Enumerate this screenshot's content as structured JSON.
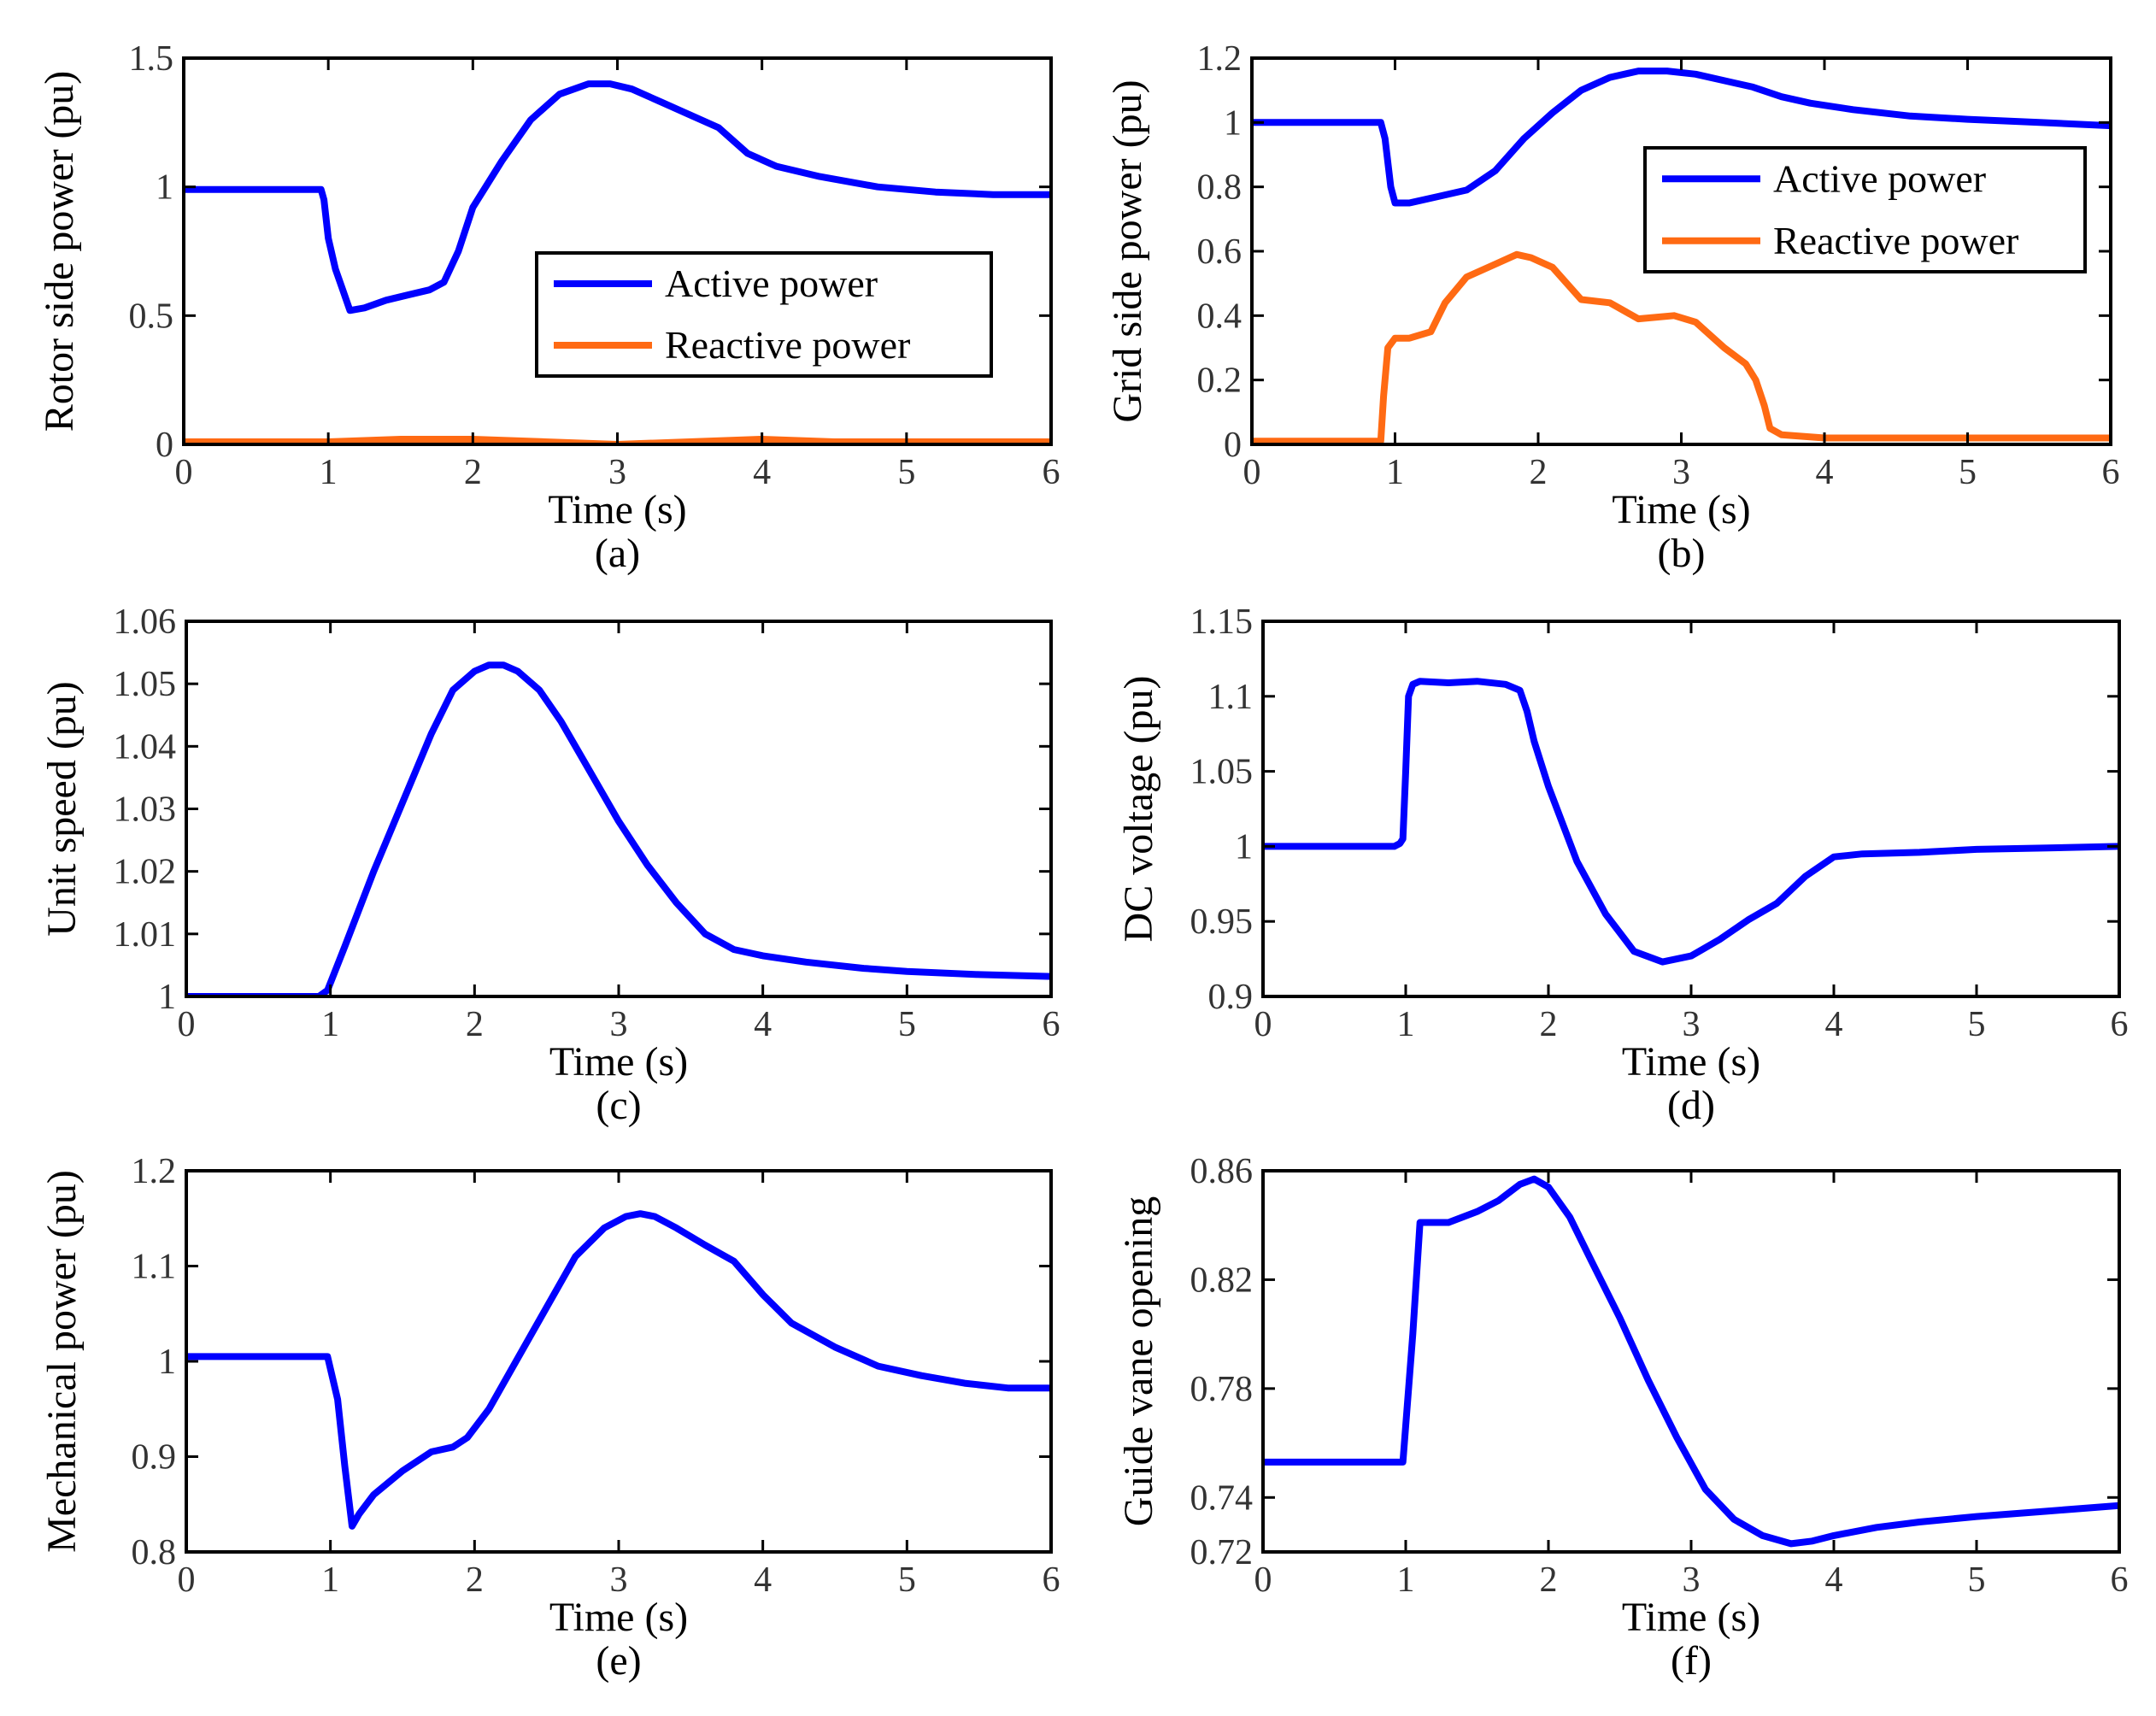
{
  "colors": {
    "active": "#0000ff",
    "reactive": "#ff6a13",
    "axis": "#000000"
  },
  "chart_data": [
    {
      "type": "line",
      "caption": "(a)",
      "xlabel": "Time (s)",
      "ylabel": "Rotor side power (pu)",
      "xlim": [
        0,
        6
      ],
      "ylim": [
        0,
        1.5
      ],
      "grid": false,
      "xticks": [
        0,
        1,
        2,
        3,
        4,
        5,
        6
      ],
      "xtick_labels": [
        "0",
        "1",
        "2",
        "3",
        "4",
        "5",
        "6"
      ],
      "yticks": [
        0,
        0.5,
        1,
        1.5
      ],
      "ytick_labels": [
        "0",
        "0.5",
        "1",
        "1.5"
      ],
      "legend": {
        "placement": "center-right",
        "entries": [
          "Active power",
          "Reactive power"
        ]
      },
      "series": [
        {
          "name": "Active power",
          "color": "active",
          "x": [
            0,
            0.95,
            0.97,
            1.0,
            1.05,
            1.1,
            1.15,
            1.25,
            1.4,
            1.55,
            1.7,
            1.8,
            1.9,
            2.0,
            2.2,
            2.4,
            2.6,
            2.8,
            2.95,
            3.1,
            3.3,
            3.5,
            3.7,
            3.9,
            4.1,
            4.4,
            4.8,
            5.2,
            5.6,
            6.0
          ],
          "y": [
            0.99,
            0.99,
            0.95,
            0.8,
            0.68,
            0.6,
            0.52,
            0.53,
            0.56,
            0.58,
            0.6,
            0.63,
            0.75,
            0.92,
            1.1,
            1.26,
            1.36,
            1.4,
            1.4,
            1.38,
            1.33,
            1.28,
            1.23,
            1.13,
            1.08,
            1.04,
            1.0,
            0.98,
            0.97,
            0.97
          ]
        },
        {
          "name": "Reactive power",
          "color": "reactive",
          "x": [
            0,
            1,
            1.5,
            2,
            2.5,
            3,
            3.5,
            4,
            4.5,
            5,
            5.5,
            6
          ],
          "y": [
            0.01,
            0.01,
            0.02,
            0.02,
            0.01,
            0.0,
            0.01,
            0.02,
            0.01,
            0.01,
            0.01,
            0.01
          ]
        }
      ]
    },
    {
      "type": "line",
      "caption": "(b)",
      "xlabel": "Time (s)",
      "ylabel": "Grid side power (pu)",
      "xlim": [
        0,
        6
      ],
      "ylim": [
        0,
        1.2
      ],
      "grid": false,
      "xticks": [
        0,
        1,
        2,
        3,
        4,
        5,
        6
      ],
      "xtick_labels": [
        "0",
        "1",
        "2",
        "3",
        "4",
        "5",
        "6"
      ],
      "yticks": [
        0,
        0.2,
        0.4,
        0.6,
        0.8,
        1.0,
        1.2
      ],
      "ytick_labels": [
        "0",
        "0.2",
        "0.4",
        "0.6",
        "0.8",
        "1",
        "1.2"
      ],
      "legend": {
        "placement": "top-right",
        "entries": [
          "Active power",
          "Reactive power"
        ]
      },
      "series": [
        {
          "name": "Active power",
          "color": "active",
          "x": [
            0,
            0.9,
            0.93,
            0.97,
            1.0,
            1.1,
            1.3,
            1.5,
            1.7,
            1.9,
            2.1,
            2.3,
            2.5,
            2.7,
            2.9,
            3.1,
            3.3,
            3.5,
            3.7,
            3.9,
            4.2,
            4.6,
            5.0,
            5.5,
            6.0
          ],
          "y": [
            1.0,
            1.0,
            0.95,
            0.8,
            0.75,
            0.75,
            0.77,
            0.79,
            0.85,
            0.95,
            1.03,
            1.1,
            1.14,
            1.16,
            1.16,
            1.15,
            1.13,
            1.11,
            1.08,
            1.06,
            1.04,
            1.02,
            1.01,
            1.0,
            0.99
          ]
        },
        {
          "name": "Reactive power",
          "color": "reactive",
          "x": [
            0,
            0.9,
            0.92,
            0.95,
            1.0,
            1.1,
            1.25,
            1.35,
            1.5,
            1.7,
            1.85,
            1.95,
            2.1,
            2.3,
            2.5,
            2.7,
            2.95,
            3.1,
            3.3,
            3.45,
            3.52,
            3.58,
            3.62,
            3.7,
            4.0,
            5.0,
            6.0
          ],
          "y": [
            0.01,
            0.01,
            0.15,
            0.3,
            0.33,
            0.33,
            0.35,
            0.44,
            0.52,
            0.56,
            0.59,
            0.58,
            0.55,
            0.45,
            0.44,
            0.39,
            0.4,
            0.38,
            0.3,
            0.25,
            0.2,
            0.12,
            0.05,
            0.03,
            0.02,
            0.02,
            0.02
          ]
        }
      ]
    },
    {
      "type": "line",
      "caption": "(c)",
      "xlabel": "Time (s)",
      "ylabel": "Unit speed (pu)",
      "xlim": [
        0,
        6
      ],
      "ylim": [
        1,
        1.06
      ],
      "grid": false,
      "xticks": [
        0,
        1,
        2,
        3,
        4,
        5,
        6
      ],
      "xtick_labels": [
        "0",
        "1",
        "2",
        "3",
        "4",
        "5",
        "6"
      ],
      "yticks": [
        1,
        1.01,
        1.02,
        1.03,
        1.04,
        1.05,
        1.06
      ],
      "ytick_labels": [
        "1",
        "1.01",
        "1.02",
        "1.03",
        "1.04",
        "1.05",
        "1.06"
      ],
      "series": [
        {
          "name": "Unit speed",
          "color": "active",
          "x": [
            0,
            0.92,
            0.98,
            1.1,
            1.3,
            1.5,
            1.7,
            1.85,
            2.0,
            2.1,
            2.2,
            2.3,
            2.45,
            2.6,
            2.8,
            3.0,
            3.2,
            3.4,
            3.6,
            3.8,
            4.0,
            4.3,
            4.7,
            5.0,
            5.5,
            6.0
          ],
          "y": [
            1.0,
            1.0,
            1.001,
            1.008,
            1.02,
            1.031,
            1.042,
            1.049,
            1.052,
            1.053,
            1.053,
            1.052,
            1.049,
            1.044,
            1.036,
            1.028,
            1.021,
            1.015,
            1.01,
            1.0075,
            1.0065,
            1.0055,
            1.0045,
            1.004,
            1.0035,
            1.0032
          ]
        }
      ]
    },
    {
      "type": "line",
      "caption": "(d)",
      "xlabel": "Time (s)",
      "ylabel": "DC voltage (pu)",
      "xlim": [
        0,
        6
      ],
      "ylim": [
        0.9,
        1.15
      ],
      "grid": false,
      "xticks": [
        0,
        1,
        2,
        3,
        4,
        5,
        6
      ],
      "xtick_labels": [
        "0",
        "1",
        "2",
        "3",
        "4",
        "5",
        "6"
      ],
      "yticks": [
        0.9,
        0.95,
        1.0,
        1.05,
        1.1,
        1.15
      ],
      "ytick_labels": [
        "0.9",
        "0.95",
        "1",
        "1.05",
        "1.1",
        "1.15"
      ],
      "series": [
        {
          "name": "DC voltage",
          "color": "active",
          "x": [
            0,
            0.92,
            0.96,
            0.98,
            1.0,
            1.02,
            1.05,
            1.1,
            1.3,
            1.5,
            1.7,
            1.8,
            1.85,
            1.9,
            2.0,
            2.1,
            2.2,
            2.4,
            2.6,
            2.8,
            3.0,
            3.2,
            3.4,
            3.6,
            3.8,
            4.0,
            4.2,
            4.6,
            5.0,
            5.5,
            6.0
          ],
          "y": [
            1.0,
            1.0,
            1.002,
            1.005,
            1.05,
            1.1,
            1.108,
            1.11,
            1.109,
            1.11,
            1.108,
            1.104,
            1.09,
            1.07,
            1.04,
            1.015,
            0.99,
            0.955,
            0.93,
            0.923,
            0.927,
            0.938,
            0.951,
            0.962,
            0.98,
            0.993,
            0.995,
            0.996,
            0.998,
            0.999,
            1.0
          ]
        }
      ]
    },
    {
      "type": "line",
      "caption": "(e)",
      "xlabel": "Time (s)",
      "ylabel": "Mechanical power (pu)",
      "xlim": [
        0,
        6
      ],
      "ylim": [
        0.8,
        1.2
      ],
      "grid": false,
      "xticks": [
        0,
        1,
        2,
        3,
        4,
        5,
        6
      ],
      "xtick_labels": [
        "0",
        "1",
        "2",
        "3",
        "4",
        "5",
        "6"
      ],
      "yticks": [
        0.8,
        0.9,
        1.0,
        1.1,
        1.2
      ],
      "ytick_labels": [
        "0.8",
        "0.9",
        "1",
        "1.1",
        "1.2"
      ],
      "series": [
        {
          "name": "Mechanical power",
          "color": "active",
          "x": [
            0,
            0.98,
            1.05,
            1.1,
            1.15,
            1.2,
            1.3,
            1.5,
            1.7,
            1.85,
            1.95,
            2.1,
            2.4,
            2.7,
            2.9,
            3.05,
            3.15,
            3.25,
            3.4,
            3.6,
            3.8,
            4.0,
            4.2,
            4.5,
            4.8,
            5.1,
            5.4,
            5.7,
            6.0
          ],
          "y": [
            1.005,
            1.005,
            0.96,
            0.89,
            0.827,
            0.84,
            0.86,
            0.885,
            0.905,
            0.91,
            0.92,
            0.95,
            1.03,
            1.11,
            1.14,
            1.152,
            1.155,
            1.152,
            1.14,
            1.122,
            1.105,
            1.07,
            1.04,
            1.015,
            0.995,
            0.985,
            0.977,
            0.972,
            0.972
          ]
        }
      ]
    },
    {
      "type": "line",
      "caption": "(f)",
      "xlabel": "Time (s)",
      "ylabel": "Guide vane opening",
      "xlim": [
        0,
        6
      ],
      "ylim": [
        0.72,
        0.86
      ],
      "grid": false,
      "xticks": [
        0,
        1,
        2,
        3,
        4,
        5,
        6
      ],
      "xtick_labels": [
        "0",
        "1",
        "2",
        "3",
        "4",
        "5",
        "6"
      ],
      "yticks": [
        0.72,
        0.74,
        0.78,
        0.82,
        0.86
      ],
      "ytick_labels": [
        "0.72",
        "0.74",
        "0.78",
        "0.82",
        "0.86"
      ],
      "series": [
        {
          "name": "Guide vane opening",
          "color": "active",
          "x": [
            0,
            0.98,
            1.05,
            1.1,
            1.2,
            1.3,
            1.5,
            1.65,
            1.8,
            1.9,
            2.0,
            2.15,
            2.3,
            2.5,
            2.7,
            2.9,
            3.1,
            3.3,
            3.5,
            3.7,
            3.85,
            4.0,
            4.3,
            4.6,
            5.0,
            5.5,
            6.0
          ],
          "y": [
            0.753,
            0.753,
            0.8,
            0.841,
            0.841,
            0.841,
            0.845,
            0.849,
            0.855,
            0.857,
            0.854,
            0.843,
            0.827,
            0.806,
            0.783,
            0.762,
            0.743,
            0.732,
            0.726,
            0.723,
            0.724,
            0.726,
            0.729,
            0.731,
            0.733,
            0.735,
            0.737
          ]
        }
      ]
    }
  ]
}
